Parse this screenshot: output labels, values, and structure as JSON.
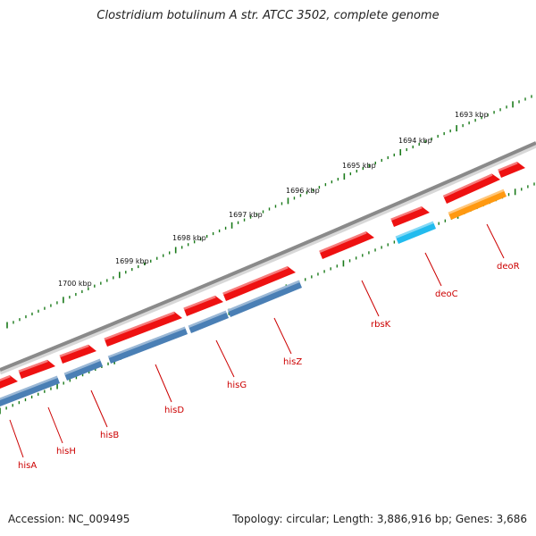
{
  "title": "Clostridium botulinum A str. ATCC 3502, complete genome",
  "footer": {
    "accession": "Accession: NC_009495",
    "summary": "Topology: circular; Length: 3,886,916 bp; Genes: 3,686"
  },
  "colors": {
    "backbone": "#8a8a8a",
    "ruler": "#1a7a1a",
    "gene_fwd": "#ee1111",
    "gene_cds": "#4a7fb5",
    "gene_cyan": "#22bbee",
    "gene_orange": "#ff9911",
    "label": "#cc0000"
  },
  "ruler_labels": [
    "1693 kbp",
    "1694 kbp",
    "1695 kbp",
    "1696 kbp",
    "1697 kbp",
    "1698 kbp",
    "1699 kbp",
    "1700 kbp"
  ],
  "gene_labels": [
    "hisA",
    "hisH",
    "hisB",
    "hisD",
    "hisG",
    "hisZ",
    "rbsK",
    "deoC",
    "deoR"
  ]
}
